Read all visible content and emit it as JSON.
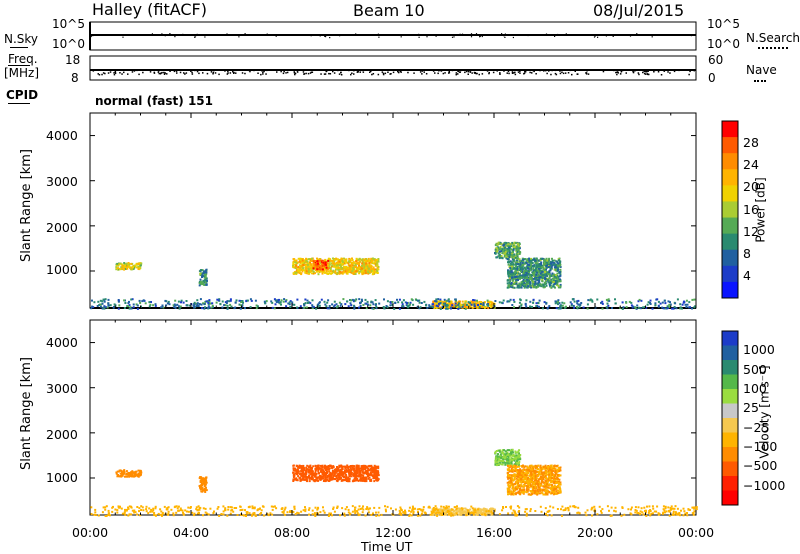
{
  "header": {
    "station": "Halley (fitACF)",
    "beam": "Beam 10",
    "date": "08/Jul/2015"
  },
  "strips": {
    "nsky_label": "N.Sky",
    "nsearch_label": "N.Search",
    "freq_label_1": "Freq.",
    "freq_label_2": "[MHz]",
    "nave_label": "Nave",
    "cpid_label": "CPID",
    "cpid_value": "normal (fast) 151",
    "noise_left_ticks": [
      "10^5",
      "10^0"
    ],
    "noise_right_ticks": [
      "10^5",
      "10^0"
    ],
    "freq_ticks": [
      "18",
      "8"
    ],
    "nave_ticks": [
      "60",
      "0"
    ]
  },
  "axes": {
    "ylabel": "Slant Range [km]",
    "xlabel": "Time UT",
    "yticks": [
      "4000",
      "3000",
      "2000",
      "1000"
    ],
    "xticks": [
      "00:00",
      "04:00",
      "08:00",
      "12:00",
      "16:00",
      "20:00",
      "00:00"
    ]
  },
  "power_scale": {
    "label": "Power [dB]",
    "ticks": [
      "28",
      "24",
      "20",
      "16",
      "12",
      "8",
      "4"
    ],
    "colors": [
      "#ff0000",
      "#ff5a00",
      "#ff8c00",
      "#ffb400",
      "#f0d200",
      "#aacc33",
      "#55aa55",
      "#2a8a70",
      "#2060a0",
      "#1c3cc8",
      "#0a14ff"
    ]
  },
  "velocity_scale": {
    "label": "Velocity [m s⁻¹]",
    "ticks": [
      "1000",
      "500",
      "100",
      "25",
      "−25",
      "−100",
      "−500",
      "−1000"
    ],
    "colors": [
      "#1c3cc8",
      "#2060a0",
      "#2a8a70",
      "#55b84a",
      "#9adc40",
      "#c8c8c8",
      "#f5c850",
      "#ffb400",
      "#ff8c00",
      "#ff5a00",
      "#ff2000",
      "#ff0000"
    ]
  },
  "chart_data": [
    {
      "type": "heatmap",
      "name": "Power",
      "x_range": [
        "00:00",
        "24:00"
      ],
      "ylim": [
        180,
        4500
      ],
      "units": "dB",
      "regions": [
        {
          "t": [
            1.0,
            2.0
          ],
          "range": [
            1050,
            1200
          ],
          "value": 18
        },
        {
          "t": [
            4.3,
            4.6
          ],
          "range": [
            700,
            1050
          ],
          "value": 10
        },
        {
          "t": [
            8.0,
            11.4
          ],
          "range": [
            950,
            1300
          ],
          "value": 20
        },
        {
          "t": [
            8.8,
            9.4
          ],
          "range": [
            1050,
            1250
          ],
          "value": 28
        },
        {
          "t": [
            16.0,
            17.0
          ],
          "range": [
            1300,
            1650
          ],
          "value": 12
        },
        {
          "t": [
            16.5,
            18.6
          ],
          "range": [
            650,
            1300
          ],
          "value": 10
        },
        {
          "t": [
            13.5,
            16.0
          ],
          "range": [
            200,
            350
          ],
          "value": 22
        },
        {
          "t": [
            0.0,
            24.0
          ],
          "range": [
            180,
            400
          ],
          "value": 8
        }
      ]
    },
    {
      "type": "heatmap",
      "name": "Velocity",
      "x_range": [
        "00:00",
        "24:00"
      ],
      "ylim": [
        180,
        4500
      ],
      "units": "m s-1",
      "regions": [
        {
          "t": [
            1.0,
            2.0
          ],
          "range": [
            1050,
            1200
          ],
          "value": -150
        },
        {
          "t": [
            4.3,
            4.6
          ],
          "range": [
            700,
            1050
          ],
          "value": -150
        },
        {
          "t": [
            8.0,
            11.4
          ],
          "range": [
            950,
            1300
          ],
          "value": -300
        },
        {
          "t": [
            16.0,
            17.0
          ],
          "range": [
            1300,
            1650
          ],
          "value": 100
        },
        {
          "t": [
            16.5,
            18.6
          ],
          "range": [
            650,
            1300
          ],
          "value": -100
        },
        {
          "t": [
            13.5,
            16.0
          ],
          "range": [
            200,
            350
          ],
          "value": 0
        },
        {
          "t": [
            0.0,
            24.0
          ],
          "range": [
            180,
            400
          ],
          "value": -60
        }
      ]
    }
  ]
}
